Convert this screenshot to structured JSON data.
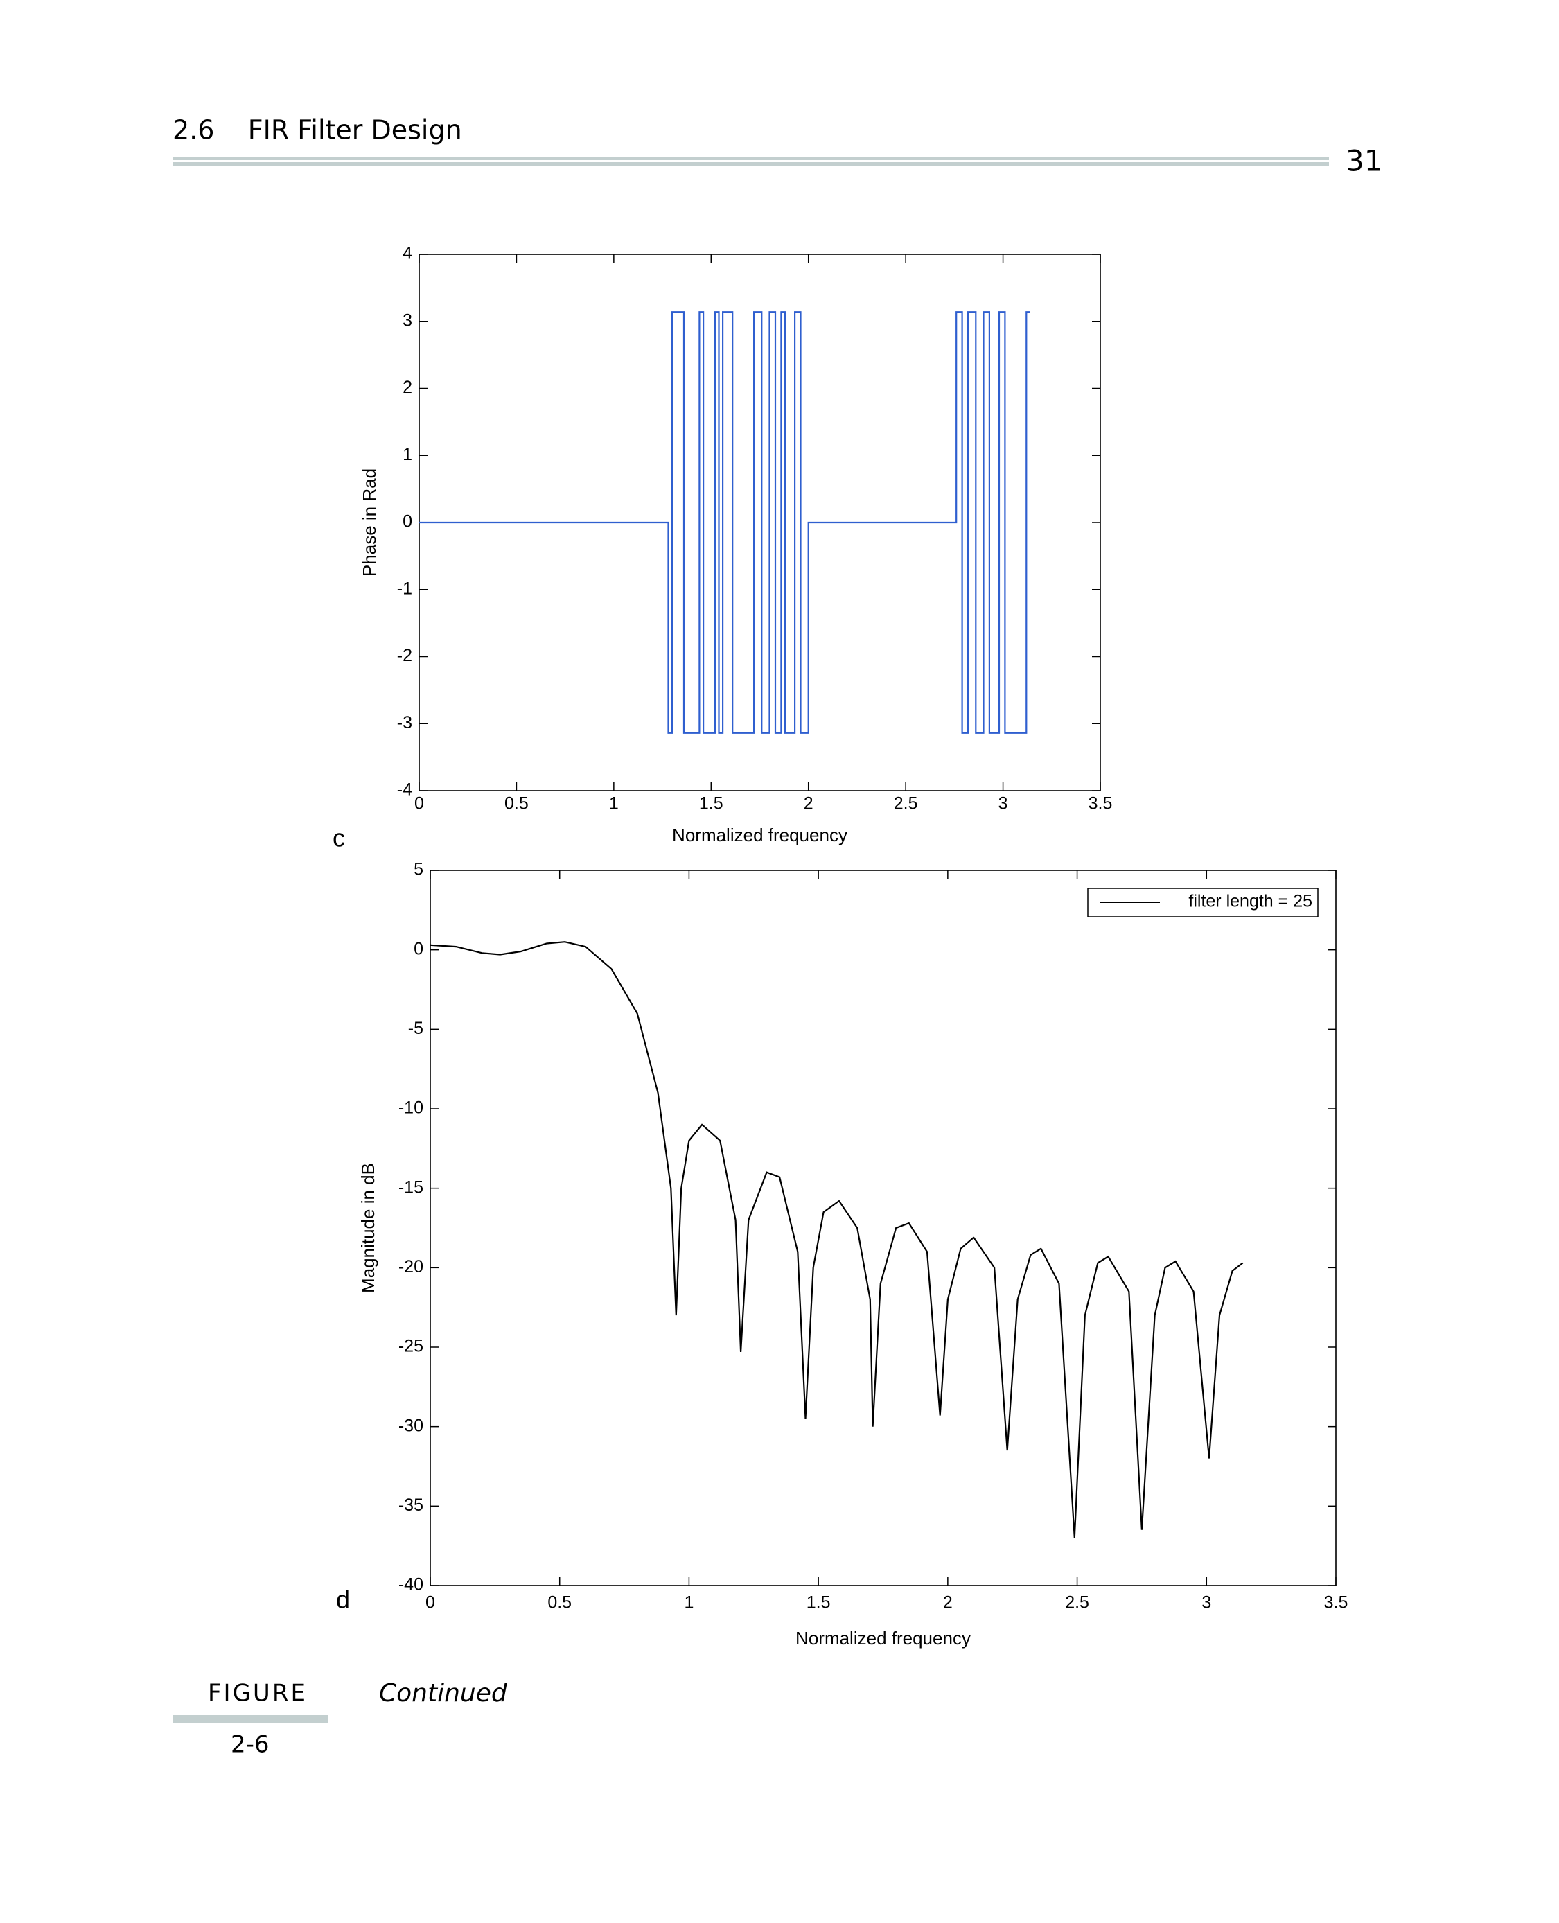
{
  "header": {
    "section": "2.6    FIR Filter Design",
    "page": "31"
  },
  "chart_data": [
    {
      "type": "line",
      "panel_label": "c",
      "xlabel": "Normalized frequency",
      "ylabel": "Phase in Rad",
      "xlim": [
        0,
        3.5
      ],
      "xticks": [
        0,
        0.5,
        1,
        1.5,
        2,
        2.5,
        3,
        3.5
      ],
      "ylim": [
        -4,
        4
      ],
      "yticks": [
        -4,
        -3,
        -2,
        -1,
        0,
        1,
        2,
        3,
        4
      ],
      "x": [
        0,
        1.28,
        1.28,
        1.3,
        1.3,
        1.36,
        1.36,
        1.44,
        1.44,
        1.46,
        1.46,
        1.52,
        1.52,
        1.54,
        1.54,
        1.56,
        1.56,
        1.61,
        1.61,
        1.72,
        1.72,
        1.76,
        1.76,
        1.8,
        1.8,
        1.83,
        1.83,
        1.86,
        1.86,
        1.88,
        1.88,
        1.93,
        1.93,
        1.96,
        1.96,
        2.0,
        2.0,
        2.76,
        2.76,
        2.79,
        2.79,
        2.82,
        2.82,
        2.86,
        2.86,
        2.9,
        2.9,
        2.93,
        2.93,
        2.98,
        2.98,
        3.01,
        3.01,
        3.12,
        3.12,
        3.14
      ],
      "series": [
        {
          "color": "#2f5fcf",
          "values": [
            0,
            0,
            -3.14,
            -3.14,
            3.14,
            3.14,
            -3.14,
            -3.14,
            3.14,
            3.14,
            -3.14,
            -3.14,
            3.14,
            3.14,
            -3.14,
            -3.14,
            3.14,
            3.14,
            -3.14,
            -3.14,
            3.14,
            3.14,
            -3.14,
            -3.14,
            3.14,
            3.14,
            -3.14,
            -3.14,
            3.14,
            3.14,
            -3.14,
            -3.14,
            3.14,
            3.14,
            -3.14,
            -3.14,
            0,
            0,
            3.14,
            3.14,
            -3.14,
            -3.14,
            3.14,
            3.14,
            -3.14,
            -3.14,
            3.14,
            3.14,
            -3.14,
            -3.14,
            3.14,
            3.14,
            -3.14,
            -3.14,
            3.14,
            3.14
          ]
        }
      ]
    },
    {
      "type": "line",
      "panel_label": "d",
      "xlabel": "Normalized frequency",
      "ylabel": "Magnitude in dB",
      "xlim": [
        0,
        3.5
      ],
      "xticks": [
        0,
        0.5,
        1,
        1.5,
        2,
        2.5,
        3,
        3.5
      ],
      "ylim": [
        -40,
        5
      ],
      "yticks": [
        -40,
        -35,
        -30,
        -25,
        -20,
        -15,
        -10,
        -5,
        0,
        5
      ],
      "legend": "upper right",
      "x": [
        0,
        0.1,
        0.2,
        0.27,
        0.35,
        0.45,
        0.52,
        0.6,
        0.7,
        0.8,
        0.88,
        0.93,
        0.95,
        0.97,
        1.0,
        1.05,
        1.12,
        1.18,
        1.2,
        1.23,
        1.3,
        1.35,
        1.42,
        1.45,
        1.48,
        1.52,
        1.58,
        1.65,
        1.7,
        1.71,
        1.74,
        1.8,
        1.85,
        1.92,
        1.97,
        2.0,
        2.05,
        2.1,
        2.18,
        2.23,
        2.27,
        2.32,
        2.36,
        2.43,
        2.49,
        2.53,
        2.58,
        2.62,
        2.7,
        2.75,
        2.8,
        2.84,
        2.88,
        2.95,
        3.01,
        3.05,
        3.1,
        3.14
      ],
      "series": [
        {
          "name": "filter length = 25",
          "color": "#000000",
          "values": [
            0.3,
            0.2,
            -0.2,
            -0.3,
            -0.1,
            0.4,
            0.5,
            0.2,
            -1.2,
            -4,
            -9,
            -15,
            -23,
            -15,
            -12,
            -11,
            -12,
            -17,
            -25.3,
            -17,
            -14,
            -14.3,
            -19,
            -29.5,
            -20,
            -16.5,
            -15.8,
            -17.5,
            -22,
            -30,
            -21,
            -17.5,
            -17.2,
            -19,
            -29.3,
            -22,
            -18.8,
            -18.1,
            -20,
            -31.5,
            -22,
            -19.2,
            -18.8,
            -21,
            -37,
            -23,
            -19.7,
            -19.3,
            -21.5,
            -36.5,
            -23,
            -20,
            -19.6,
            -21.5,
            -32,
            -23,
            -20.2,
            -19.7
          ]
        }
      ]
    }
  ],
  "caption": {
    "label": "FIGURE",
    "number": "2-6",
    "text": "Continued"
  }
}
